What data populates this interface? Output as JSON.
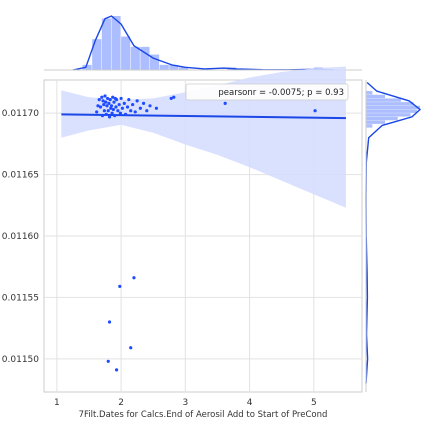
{
  "chart_data": {
    "type": "scatter",
    "title": "",
    "xlabel": "7Filt.Dates for Calcs.End of Aerosil Add to Start of PreCond",
    "ylabel": "",
    "xlim": [
      0.8,
      5.75
    ],
    "ylim": [
      0.011473,
      0.011727
    ],
    "x_ticks": [
      1,
      2,
      3,
      4,
      5
    ],
    "x_tick_labels": [
      "1",
      "2",
      "3",
      "4",
      "5"
    ],
    "y_ticks": [
      0.0115,
      0.01155,
      0.0116,
      0.01165,
      0.0117
    ],
    "y_tick_labels": [
      "0.01150",
      "0.01155",
      "0.01160",
      "0.01165",
      "0.01170"
    ],
    "grid": true,
    "marginal_distributions": true,
    "legend": {
      "text": "pearsonr = -0.0075; p = 0.93",
      "position": "top-right"
    },
    "colors": {
      "points": "#1f4cff",
      "fit": "#1a47e6",
      "band": "#d3dcff",
      "hist": "#9eb3ff",
      "grid": "#e2e2e2"
    },
    "regression": {
      "x": [
        1.07,
        5.5
      ],
      "y": [
        0.011699,
        0.011696
      ]
    },
    "confidence_band": {
      "x": [
        1.07,
        1.5,
        2.0,
        2.5,
        3.0,
        3.5,
        4.0,
        4.5,
        5.0,
        5.5
      ],
      "upper": [
        0.0117185,
        0.011713,
        0.011711,
        0.011712,
        0.011717,
        0.0117225,
        0.011729,
        0.0117335,
        0.0117365,
        0.011738
      ],
      "lower": [
        0.01168,
        0.011686,
        0.0116905,
        0.011684,
        0.0116745,
        0.011666,
        0.011656,
        0.011645,
        0.011634,
        0.011623
      ]
    },
    "points": [
      [
        1.62,
        0.011701
      ],
      [
        1.66,
        0.011711
      ],
      [
        1.68,
        0.011705
      ],
      [
        1.7,
        0.011713
      ],
      [
        1.71,
        0.011698
      ],
      [
        1.73,
        0.011707
      ],
      [
        1.74,
        0.011702
      ],
      [
        1.75,
        0.011714
      ],
      [
        1.76,
        0.011709
      ],
      [
        1.77,
        0.011699
      ],
      [
        1.78,
        0.011706
      ],
      [
        1.79,
        0.011712
      ],
      [
        1.8,
        0.011702
      ],
      [
        1.81,
        0.011708
      ],
      [
        1.82,
        0.011697
      ],
      [
        1.83,
        0.011711
      ],
      [
        1.84,
        0.011704
      ],
      [
        1.85,
        0.011706
      ],
      [
        1.86,
        0.0117
      ],
      [
        1.87,
        0.011713
      ],
      [
        1.88,
        0.011703
      ],
      [
        1.89,
        0.011709
      ],
      [
        1.9,
        0.011698
      ],
      [
        1.92,
        0.011705
      ],
      [
        1.93,
        0.011711
      ],
      [
        1.95,
        0.011702
      ],
      [
        1.97,
        0.011707
      ],
      [
        1.99,
        0.0117
      ],
      [
        2.0,
        0.011712
      ],
      [
        2.02,
        0.011704
      ],
      [
        2.05,
        0.011708
      ],
      [
        2.07,
        0.011699
      ],
      [
        2.1,
        0.011705
      ],
      [
        2.12,
        0.011711
      ],
      [
        2.15,
        0.011702
      ],
      [
        2.18,
        0.011707
      ],
      [
        2.22,
        0.011701
      ],
      [
        2.25,
        0.01171
      ],
      [
        2.3,
        0.011704
      ],
      [
        2.35,
        0.011708
      ],
      [
        2.4,
        0.011702
      ],
      [
        2.45,
        0.011706
      ],
      [
        1.64,
        0.011706
      ],
      [
        1.72,
        0.01171
      ],
      [
        1.91,
        0.011712
      ],
      [
        2.55,
        0.011704
      ],
      [
        2.78,
        0.011712
      ],
      [
        2.82,
        0.011713
      ],
      [
        3.62,
        0.011708
      ],
      [
        5.02,
        0.011702
      ],
      [
        2.2,
        0.011566
      ],
      [
        1.98,
        0.011559
      ],
      [
        1.82,
        0.01153
      ],
      [
        2.15,
        0.011509
      ],
      [
        1.8,
        0.011498
      ],
      [
        1.93,
        0.011491
      ]
    ],
    "x_hist": {
      "bin_edges": [
        1.4,
        1.55,
        1.7,
        1.85,
        2.0,
        2.15,
        2.3,
        2.45,
        2.6,
        2.75,
        2.9,
        3.05,
        3.2,
        3.35,
        3.5,
        3.65,
        3.8,
        3.95,
        4.1,
        4.25,
        4.4,
        4.55,
        4.7,
        4.85,
        5.0,
        5.15
      ],
      "counts": [
        2,
        12,
        20,
        21,
        13,
        9,
        9,
        6,
        2,
        2,
        1,
        0,
        0,
        0,
        0,
        1,
        0,
        0,
        0,
        0,
        0,
        0,
        0,
        0,
        1
      ],
      "kde_x": [
        1.25,
        1.45,
        1.6,
        1.75,
        1.85,
        2.0,
        2.2,
        2.5,
        2.8,
        3.0,
        3.3,
        3.6,
        3.8,
        4.2,
        4.6,
        4.9,
        5.05,
        5.2,
        5.3
      ],
      "kde_y": [
        0.0,
        0.05,
        0.55,
        0.95,
        1.0,
        0.85,
        0.45,
        0.22,
        0.09,
        0.05,
        0.02,
        0.035,
        0.02,
        0.005,
        0.003,
        0.012,
        0.016,
        0.008,
        0.0
      ]
    },
    "y_hist": {
      "bin_edges": [
        0.011688,
        0.011691,
        0.011694,
        0.011697,
        0.0117,
        0.011703,
        0.011706,
        0.011709,
        0.011712,
        0.011715,
        0.011718
      ],
      "counts": [
        2,
        6,
        10,
        14,
        16,
        17,
        15,
        11,
        6,
        2
      ],
      "kde_y": [
        0.01148,
        0.0115,
        0.01152,
        0.01155,
        0.01157,
        0.0116,
        0.01163,
        0.01166,
        0.01168,
        0.01169,
        0.011697,
        0.011703,
        0.01171,
        0.011718,
        0.011725
      ],
      "kde_x": [
        0.0,
        0.03,
        0.01,
        0.025,
        0.02,
        0.004,
        0.0,
        0.006,
        0.05,
        0.3,
        0.85,
        1.0,
        0.8,
        0.2,
        0.02
      ]
    }
  }
}
